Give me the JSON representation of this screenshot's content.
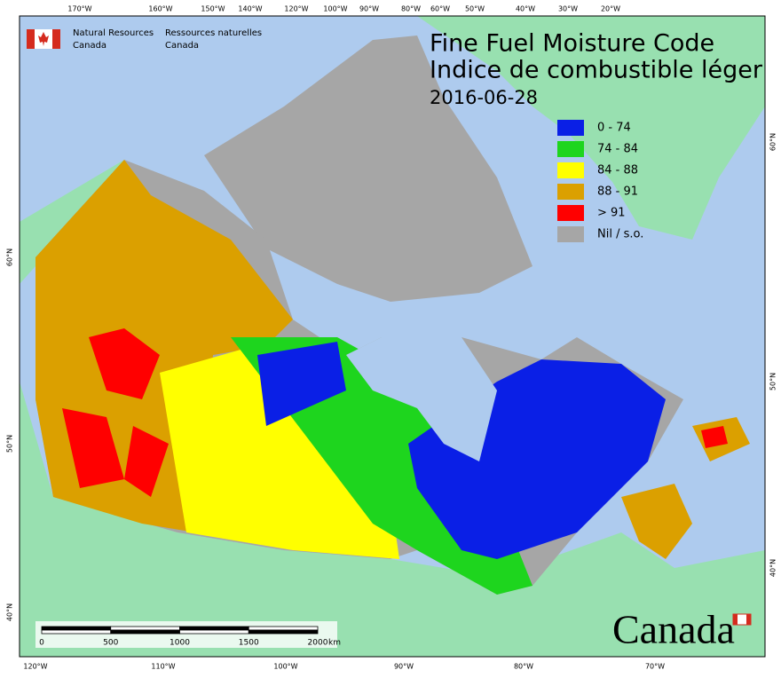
{
  "header": {
    "en_line1": "Natural Resources",
    "en_line2": "Canada",
    "fr_line1": "Ressources naturelles",
    "fr_line2": "Canada"
  },
  "title": {
    "line1": "Fine Fuel Moisture Code",
    "line2": "Indice de combustible léger",
    "date": "2016-06-28"
  },
  "legend": {
    "items": [
      {
        "label": "0 - 74",
        "color": "#0a1fe6"
      },
      {
        "label": "74 - 84",
        "color": "#1ed51e"
      },
      {
        "label": "84 - 88",
        "color": "#ffff00"
      },
      {
        "label": "88 - 91",
        "color": "#dba000"
      },
      {
        "label": "> 91",
        "color": "#ff0000"
      },
      {
        "label": "Nil / s.o.",
        "color": "#a6a6a6"
      }
    ]
  },
  "graticule": {
    "top": [
      "170°W",
      "160°W",
      "150°W",
      "140°W",
      "120°W",
      "100°W",
      "90°W",
      "80°W",
      "60°W",
      "50°W",
      "40°W",
      "30°W",
      "20°W"
    ],
    "bottom": [
      "120°W",
      "110°W",
      "100°W",
      "90°W",
      "80°W",
      "70°W"
    ],
    "left": [
      "60°N",
      "50°N",
      "40°N"
    ],
    "right": [
      "60°N",
      "50°N",
      "40°N"
    ]
  },
  "scale_bar": {
    "labels": [
      "0",
      "500",
      "1000",
      "1500",
      "2000"
    ],
    "unit": "km"
  },
  "wordmark": "Canada"
}
